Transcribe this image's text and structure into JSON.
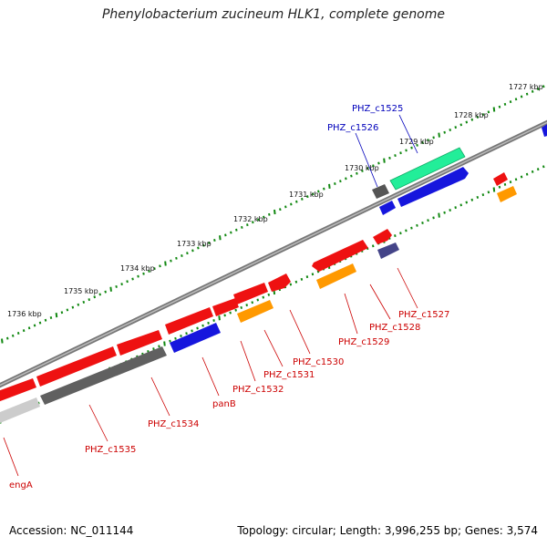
{
  "title": "Phenylobacterium zucineum HLK1, complete genome",
  "footer": {
    "accession": "Accession: NC_011144",
    "summary": "Topology: circular; Length: 3,996,255 bp; Genes: 3,574"
  },
  "colors": {
    "red": "#ee1111",
    "blue": "#1616dd",
    "gray": "#6a6a6a",
    "orange": "#ff9900",
    "green": "#22ee99",
    "purple": "#444488",
    "tick": "#118811",
    "backbone": "#888888",
    "label_red": "#cc0000",
    "label_blue": "#0000bb"
  },
  "kbp_ticks": [
    "1736 kbp",
    "1735 kbp",
    "1734 kbp",
    "1733 kbp",
    "1732 kbp",
    "1731 kbp",
    "1730 kbp",
    "1729 kbp",
    "1728 kbp",
    "1727 kbp"
  ],
  "gene_labels": [
    "PHZ_c1525",
    "PHZ_c1526",
    "PHZ_c1527",
    "PHZ_c1528",
    "PHZ_c1529",
    "PHZ_c1530",
    "PHZ_c1531",
    "PHZ_c1532",
    "panB",
    "PHZ_c1534",
    "PHZ_c1535",
    "engA"
  ]
}
